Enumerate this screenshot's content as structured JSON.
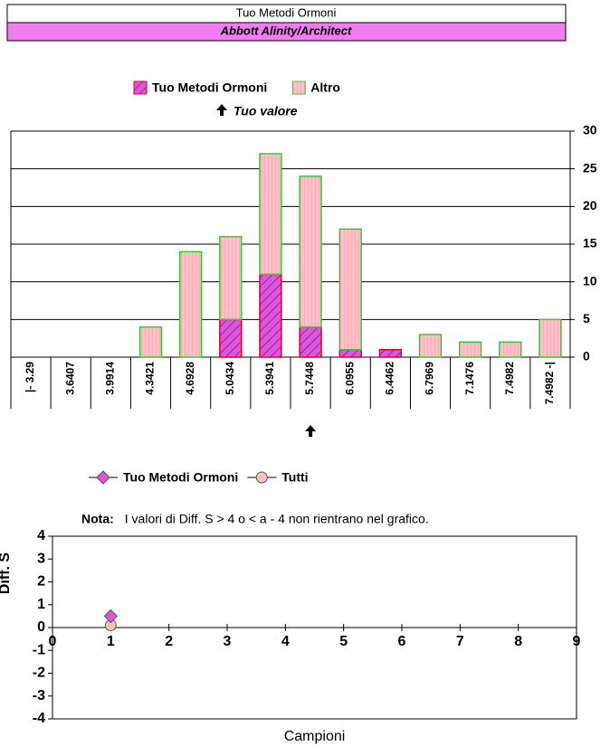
{
  "header": {
    "title": "Tuo Metodi Ormoni",
    "subtitle": "Abbott Alinity/Architect"
  },
  "chart_data": [
    {
      "type": "bar",
      "stacked": true,
      "categories": [
        "|- 3.29",
        "3.6407",
        "3.9914",
        "4.3421",
        "4.6928",
        "5.0434",
        "5.3941",
        "5.7448",
        "6.0955",
        "6.4462",
        "6.7969",
        "7.1476",
        "7.4982",
        "7.4982 -|"
      ],
      "series": [
        {
          "name": "Tuo Metodi Ormoni",
          "color": "#dd55dd",
          "values": [
            0,
            0,
            0,
            0,
            0,
            5,
            11,
            4,
            1,
            1,
            0,
            0,
            0,
            0
          ]
        },
        {
          "name": "Altro",
          "color": "#ffc0c8",
          "values": [
            0,
            0,
            0,
            4,
            14,
            11,
            16,
            20,
            16,
            0,
            3,
            2,
            2,
            5
          ]
        }
      ],
      "annotation": "Tuo valore",
      "your_value": 5.7448,
      "ylim": [
        0,
        30
      ],
      "yticks": [
        0,
        5,
        10,
        15,
        20,
        25,
        30
      ],
      "grid": true
    },
    {
      "type": "scatter",
      "note_label": "Nota:",
      "note": "I valori di Diff. S > 4 o < a - 4 non rientrano nel grafico.",
      "xlabel": "Campioni",
      "ylabel": "Diff. S",
      "series": [
        {
          "name": "Tuo Metodi Ormoni",
          "color": "#dd55dd",
          "marker": "diamond",
          "x": [
            1
          ],
          "values": [
            0.5
          ]
        },
        {
          "name": "Tutti",
          "color": "#ffc0b8",
          "marker": "circle",
          "x": [
            1
          ],
          "values": [
            0.1
          ]
        }
      ],
      "xlim": [
        0,
        9
      ],
      "xticks": [
        0,
        1,
        2,
        3,
        4,
        5,
        6,
        7,
        8,
        9
      ],
      "ylim": [
        -4,
        4
      ],
      "yticks": [
        -4,
        -3,
        -2,
        -1,
        0,
        1,
        2,
        3,
        4
      ]
    }
  ]
}
